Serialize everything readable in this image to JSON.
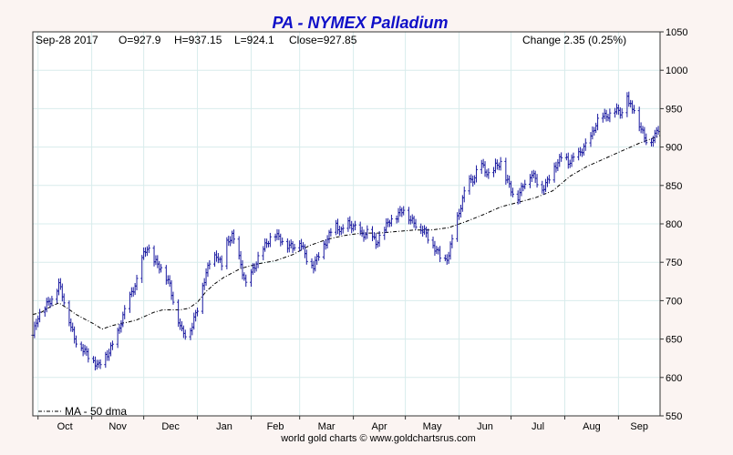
{
  "chart_data": {
    "type": "ohlc",
    "title": "PA  -  NYMEX Palladium",
    "quote": {
      "date": "Sep-28  2017",
      "open": "O=927.9",
      "high": "H=937.15",
      "low": "L=924.1",
      "close": "Close=927.85",
      "change": "Change 2.35 (0.25%)"
    },
    "legend": {
      "label": "MA - 50 dma",
      "position": "bottom-left"
    },
    "footer": "world gold charts © www.goldchartsrus.com",
    "ylim": [
      550,
      1050
    ],
    "yticks": [
      550,
      600,
      650,
      700,
      750,
      800,
      850,
      900,
      950,
      1000,
      1050
    ],
    "x_months": [
      "Oct",
      "Nov",
      "Dec",
      "Jan",
      "Feb",
      "Mar",
      "Apr",
      "May",
      "Jun",
      "Jul",
      "Aug",
      "Sep"
    ],
    "x_range_days": 362,
    "month_start_days": [
      3,
      34,
      64,
      95,
      126,
      154,
      185,
      215,
      246,
      276,
      307,
      338
    ],
    "grid": true,
    "colors": {
      "bars": "#1a1aa0",
      "ma": "#000000",
      "title": "#1010c8",
      "grid": "#d8ecec",
      "frame": "#333333"
    },
    "close_keypoints": [
      [
        0,
        655
      ],
      [
        3,
        680
      ],
      [
        8,
        695
      ],
      [
        12,
        705
      ],
      [
        15,
        722
      ],
      [
        18,
        700
      ],
      [
        21,
        675
      ],
      [
        24,
        650
      ],
      [
        28,
        640
      ],
      [
        33,
        625
      ],
      [
        38,
        615
      ],
      [
        43,
        630
      ],
      [
        48,
        650
      ],
      [
        52,
        680
      ],
      [
        56,
        705
      ],
      [
        60,
        725
      ],
      [
        63,
        755
      ],
      [
        66,
        770
      ],
      [
        70,
        752
      ],
      [
        75,
        740
      ],
      [
        79,
        720
      ],
      [
        82,
        690
      ],
      [
        86,
        660
      ],
      [
        89,
        655
      ],
      [
        92,
        668
      ],
      [
        95,
        690
      ],
      [
        98,
        720
      ],
      [
        102,
        750
      ],
      [
        106,
        760
      ],
      [
        109,
        745
      ],
      [
        112,
        775
      ],
      [
        115,
        785
      ],
      [
        119,
        755
      ],
      [
        123,
        720
      ],
      [
        127,
        740
      ],
      [
        131,
        760
      ],
      [
        135,
        775
      ],
      [
        139,
        788
      ],
      [
        143,
        780
      ],
      [
        147,
        772
      ],
      [
        150,
        770
      ],
      [
        154,
        778
      ],
      [
        158,
        755
      ],
      [
        162,
        745
      ],
      [
        166,
        765
      ],
      [
        170,
        780
      ],
      [
        174,
        800
      ],
      [
        178,
        790
      ],
      [
        182,
        800
      ],
      [
        186,
        795
      ],
      [
        190,
        785
      ],
      [
        194,
        790
      ],
      [
        198,
        775
      ],
      [
        202,
        790
      ],
      [
        206,
        805
      ],
      [
        210,
        810
      ],
      [
        214,
        820
      ],
      [
        218,
        805
      ],
      [
        222,
        798
      ],
      [
        226,
        790
      ],
      [
        230,
        775
      ],
      [
        234,
        762
      ],
      [
        237,
        748
      ],
      [
        240,
        760
      ],
      [
        243,
        790
      ],
      [
        246,
        815
      ],
      [
        249,
        840
      ],
      [
        252,
        855
      ],
      [
        255,
        860
      ],
      [
        258,
        880
      ],
      [
        261,
        870
      ],
      [
        264,
        860
      ],
      [
        267,
        875
      ],
      [
        270,
        880
      ],
      [
        273,
        860
      ],
      [
        276,
        845
      ],
      [
        279,
        830
      ],
      [
        282,
        845
      ],
      [
        285,
        860
      ],
      [
        288,
        865
      ],
      [
        291,
        855
      ],
      [
        294,
        845
      ],
      [
        297,
        855
      ],
      [
        300,
        870
      ],
      [
        303,
        880
      ],
      [
        306,
        890
      ],
      [
        309,
        880
      ],
      [
        312,
        885
      ],
      [
        315,
        890
      ],
      [
        318,
        900
      ],
      [
        321,
        905
      ],
      [
        324,
        925
      ],
      [
        327,
        938
      ],
      [
        330,
        940
      ],
      [
        333,
        942
      ],
      [
        336,
        948
      ],
      [
        340,
        945
      ],
      [
        342,
        985
      ],
      [
        344,
        955
      ],
      [
        347,
        950
      ],
      [
        350,
        930
      ],
      [
        353,
        912
      ],
      [
        356,
        905
      ],
      [
        359,
        915
      ],
      [
        362,
        928
      ]
    ],
    "ma_50dma": [
      [
        0,
        682
      ],
      [
        5,
        685
      ],
      [
        10,
        692
      ],
      [
        15,
        697
      ],
      [
        20,
        690
      ],
      [
        25,
        682
      ],
      [
        30,
        676
      ],
      [
        35,
        670
      ],
      [
        40,
        663
      ],
      [
        45,
        667
      ],
      [
        50,
        670
      ],
      [
        55,
        672
      ],
      [
        60,
        675
      ],
      [
        65,
        680
      ],
      [
        70,
        685
      ],
      [
        75,
        688
      ],
      [
        80,
        688
      ],
      [
        85,
        688
      ],
      [
        90,
        690
      ],
      [
        95,
        698
      ],
      [
        100,
        712
      ],
      [
        105,
        722
      ],
      [
        110,
        730
      ],
      [
        115,
        736
      ],
      [
        120,
        742
      ],
      [
        130,
        748
      ],
      [
        140,
        752
      ],
      [
        150,
        760
      ],
      [
        160,
        772
      ],
      [
        170,
        780
      ],
      [
        180,
        785
      ],
      [
        190,
        788
      ],
      [
        200,
        788
      ],
      [
        210,
        790
      ],
      [
        220,
        792
      ],
      [
        230,
        792
      ],
      [
        240,
        795
      ],
      [
        250,
        803
      ],
      [
        260,
        812
      ],
      [
        270,
        822
      ],
      [
        280,
        828
      ],
      [
        290,
        834
      ],
      [
        300,
        843
      ],
      [
        310,
        862
      ],
      [
        320,
        875
      ],
      [
        330,
        885
      ],
      [
        340,
        895
      ],
      [
        350,
        905
      ],
      [
        362,
        915
      ]
    ]
  }
}
